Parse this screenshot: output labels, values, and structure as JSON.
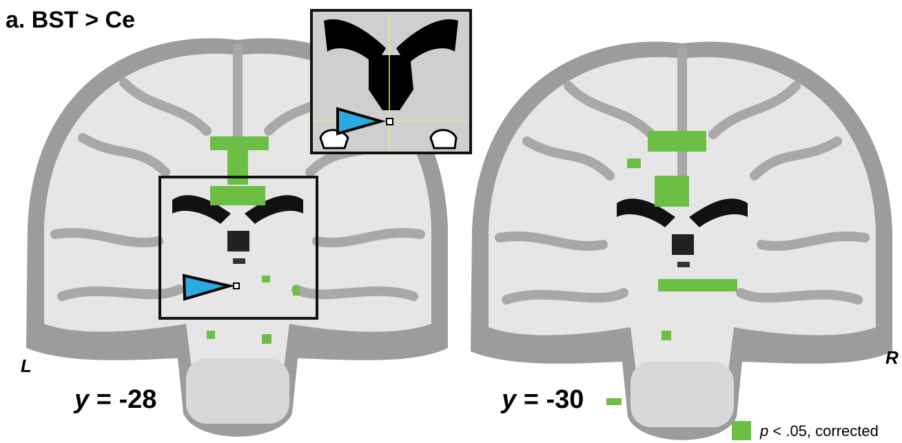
{
  "panel": {
    "label": "a. BST > Ce"
  },
  "slices": [
    {
      "variable": "y",
      "coordinate": "= -28"
    },
    {
      "variable": "y",
      "coordinate": "= -30"
    }
  ],
  "orientation": {
    "left": "L",
    "right": "R"
  },
  "legend": {
    "symbol": "p",
    "text": "< .05, corrected"
  }
}
